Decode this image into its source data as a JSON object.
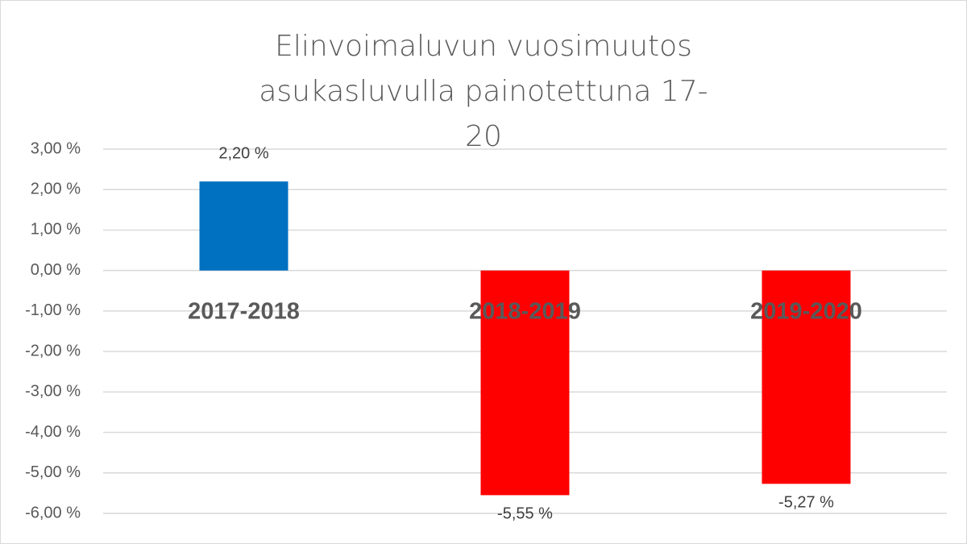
{
  "chart_data": {
    "type": "bar",
    "title": "Elinvoimaluvun vuosimuutos asukasluvulla painotettuna 17-20",
    "categories": [
      "2017-2018",
      "2018-2019",
      "2019-2020"
    ],
    "values": [
      2.2,
      -5.55,
      -5.27
    ],
    "value_labels": [
      "2,20 %",
      "-5,55 %",
      "-5,27 %"
    ],
    "colors": [
      "#0070c0",
      "#ff0000",
      "#ff0000"
    ],
    "ylim": [
      -6,
      3
    ],
    "yticks": [
      {
        "value": 3,
        "label": "3,00 %"
      },
      {
        "value": 2,
        "label": "2,00 %"
      },
      {
        "value": 1,
        "label": "1,00 %"
      },
      {
        "value": 0,
        "label": "0,00 %"
      },
      {
        "value": -1,
        "label": "-1,00 %"
      },
      {
        "value": -2,
        "label": "-2,00 %"
      },
      {
        "value": -3,
        "label": "-3,00 %"
      },
      {
        "value": -4,
        "label": "-4,00 %"
      },
      {
        "value": -5,
        "label": "-5,00 %"
      },
      {
        "value": -6,
        "label": "-6,00 %"
      }
    ],
    "grid": true
  }
}
